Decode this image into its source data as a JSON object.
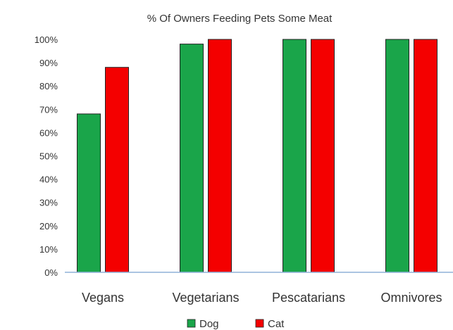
{
  "chart_data": {
    "type": "bar",
    "title": "% Of Owners Feeding Pets Some Meat",
    "categories": [
      "Vegans",
      "Vegetarians",
      "Pescatarians",
      "Omnivores"
    ],
    "series": [
      {
        "name": "Dog",
        "color": "#1aa54a",
        "values": [
          68,
          98,
          100,
          100
        ]
      },
      {
        "name": "Cat",
        "color": "#f40000",
        "values": [
          88,
          100,
          100,
          100
        ]
      }
    ],
    "ylim": [
      0,
      100
    ],
    "yticks": [
      "0%",
      "10%",
      "20%",
      "30%",
      "40%",
      "50%",
      "60%",
      "70%",
      "80%",
      "90%",
      "100%"
    ],
    "xlabel": "",
    "ylabel": "",
    "grid": false,
    "legend_position": "bottom",
    "axis_color": "#8fb0d8"
  }
}
